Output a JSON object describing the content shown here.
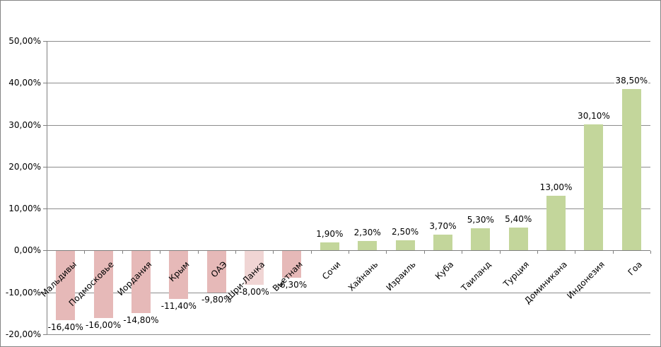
{
  "chart_data": {
    "type": "bar",
    "title": "",
    "xlabel": "",
    "ylabel": "",
    "ylim": [
      -20,
      50
    ],
    "grid": true,
    "legend": false,
    "value_format": "percent_comma_decimal",
    "y_ticks": [
      {
        "value": 50,
        "label": "50,00%"
      },
      {
        "value": 40,
        "label": "40,00%"
      },
      {
        "value": 30,
        "label": "30,00%"
      },
      {
        "value": 20,
        "label": "20,00%"
      },
      {
        "value": 10,
        "label": "10,00%"
      },
      {
        "value": 0,
        "label": "0,00%"
      },
      {
        "value": -10,
        "label": "-10,00%"
      },
      {
        "value": -20,
        "label": "-20,00%"
      }
    ],
    "categories": [
      "Мальдивы",
      "Подмосковье",
      "Иордания",
      "Крым",
      "ОАЭ",
      "Шри-Ланка",
      "Вьетнам",
      "Сочи",
      "Хайнань",
      "Израиль",
      "Куба",
      "Таиланд",
      "Турция",
      "Доминикана",
      "Индонезия",
      "Гоа"
    ],
    "points": [
      {
        "category": "Мальдивы",
        "value": -16.4,
        "label": "-16,40%",
        "color": "#E6B9B8"
      },
      {
        "category": "Подмосковье",
        "value": -16.0,
        "label": "-16,00%",
        "color": "#E6B9B8"
      },
      {
        "category": "Иордания",
        "value": -14.8,
        "label": "-14,80%",
        "color": "#E6B9B8"
      },
      {
        "category": "Крым",
        "value": -11.4,
        "label": "-11,40%",
        "color": "#E6B9B8"
      },
      {
        "category": "ОАЭ",
        "value": -9.8,
        "label": "-9,80%",
        "color": "#E6B9B8"
      },
      {
        "category": "Шри-Ланка",
        "value": -8.0,
        "label": "-8,00%",
        "color": "#F0D5D4"
      },
      {
        "category": "Вьетнам",
        "value": -6.3,
        "label": "-6,30%",
        "color": "#E6B9B8"
      },
      {
        "category": "Сочи",
        "value": 1.9,
        "label": "1,90%",
        "color": "#C3D69B"
      },
      {
        "category": "Хайнань",
        "value": 2.3,
        "label": "2,30%",
        "color": "#C3D69B"
      },
      {
        "category": "Израиль",
        "value": 2.5,
        "label": "2,50%",
        "color": "#C3D69B"
      },
      {
        "category": "Куба",
        "value": 3.7,
        "label": "3,70%",
        "color": "#C3D69B"
      },
      {
        "category": "Таиланд",
        "value": 5.3,
        "label": "5,30%",
        "color": "#C3D69B"
      },
      {
        "category": "Турция",
        "value": 5.4,
        "label": "5,40%",
        "color": "#C3D69B"
      },
      {
        "category": "Доминикана",
        "value": 13.0,
        "label": "13,00%",
        "color": "#C3D69B"
      },
      {
        "category": "Индонезия",
        "value": 30.1,
        "label": "30,10%",
        "color": "#C3D69B"
      },
      {
        "category": "Гоа",
        "value": 38.5,
        "label": "38,50%",
        "color": "#C3D69B"
      }
    ],
    "colors": {
      "positive": "#C3D69B",
      "negative": "#E6B9B8",
      "negative_highlight": "#F0D5D4",
      "gridline": "#8C8C8C",
      "axis": "#7F7F7F",
      "text": "#000000",
      "border": "#848484",
      "background": "#FFFFFF"
    }
  }
}
